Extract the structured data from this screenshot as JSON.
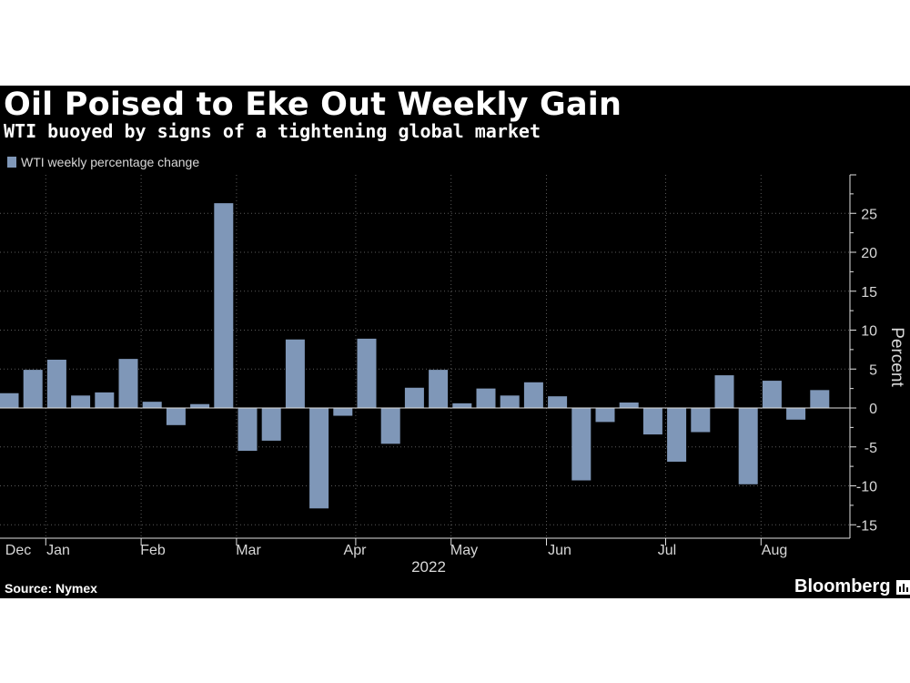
{
  "header": {
    "title": "Oil Poised to Eke Out Weekly Gain",
    "subtitle": "WTI buoyed by signs of a tightening global market"
  },
  "footer": {
    "source": "Source: Nymex",
    "brand": "Bloomberg"
  },
  "colors": {
    "background": "#000000",
    "bar": "#7f97b8",
    "text": "#ffffff"
  },
  "chart_data": {
    "type": "bar",
    "title": "Oil Poised to Eke Out Weekly Gain",
    "subtitle": "WTI buoyed by signs of a tightening global market",
    "legend": [
      "WTI weekly percentage change"
    ],
    "legend_position": "top-left",
    "ylabel": "Percent",
    "xlabel": "2022",
    "ylim": [
      -15,
      30
    ],
    "yticks": [
      -15,
      -10,
      -5,
      0,
      5,
      10,
      15,
      20,
      25
    ],
    "grid": true,
    "x_tick_labels": [
      "Dec",
      "Jan",
      "Feb",
      "Mar",
      "Apr",
      "May",
      "Jun",
      "Jul",
      "Aug"
    ],
    "x_tick_week_index": [
      0,
      2,
      6,
      10,
      15,
      19,
      23,
      28,
      32
    ],
    "series": [
      {
        "name": "WTI weekly percentage change",
        "values": [
          1.9,
          4.9,
          6.2,
          1.6,
          2.0,
          6.3,
          0.8,
          -2.2,
          0.5,
          26.3,
          -5.5,
          -4.2,
          8.8,
          -12.9,
          -1.0,
          8.9,
          -4.6,
          2.6,
          4.9,
          0.6,
          2.5,
          1.6,
          3.3,
          1.5,
          -9.3,
          -1.8,
          0.7,
          -3.4,
          -6.9,
          -3.1,
          4.2,
          -9.8,
          3.5,
          -1.5,
          2.3
        ]
      }
    ]
  }
}
